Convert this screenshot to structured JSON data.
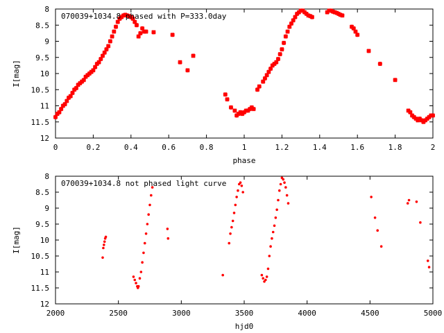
{
  "chart_data": [
    {
      "type": "scatter",
      "title": "070039+1034.8 phased with P=333.0day",
      "xlabel": "phase",
      "ylabel": "I[mag]",
      "xlim": [
        0,
        2
      ],
      "ylim": [
        12,
        8
      ],
      "y_inverted": true,
      "x_ticks": [
        "0",
        "0.2",
        "0.4",
        "0.6",
        "0.8",
        "1",
        "1.2",
        "1.4",
        "1.6",
        "1.8",
        "2"
      ],
      "y_ticks": [
        "8",
        "8.5",
        "9",
        "9.5",
        "10",
        "10.5",
        "11",
        "11.5",
        "12"
      ],
      "grid": false,
      "color": "#ff0000",
      "marker": "cross",
      "series": [
        {
          "x": [
            0.0,
            0.01,
            0.02,
            0.03,
            0.04,
            0.05,
            0.06,
            0.07,
            0.08,
            0.09,
            0.1,
            0.11,
            0.12,
            0.13,
            0.14,
            0.15,
            0.16,
            0.17,
            0.18,
            0.19,
            0.2,
            0.21,
            0.22,
            0.23,
            0.24,
            0.25,
            0.26,
            0.27,
            0.28,
            0.29,
            0.3,
            0.31,
            0.32,
            0.33,
            0.34,
            0.35,
            0.36,
            0.37,
            0.38,
            0.39,
            0.4,
            0.41,
            0.42,
            0.43,
            0.44,
            0.45,
            0.46,
            0.47,
            0.48,
            0.52,
            0.62,
            0.66,
            0.7,
            0.73,
            0.9,
            0.91,
            0.93,
            0.95,
            0.96,
            0.97,
            0.98,
            0.99,
            1.0,
            1.01,
            1.02,
            1.03,
            1.04,
            1.05,
            1.07,
            1.08,
            1.1,
            1.11,
            1.12,
            1.13,
            1.14,
            1.15,
            1.16,
            1.17,
            1.18,
            1.19,
            1.2,
            1.21,
            1.22,
            1.23,
            1.24,
            1.25,
            1.26,
            1.27,
            1.28,
            1.29,
            1.3,
            1.31,
            1.32,
            1.33,
            1.34,
            1.35,
            1.36,
            1.44,
            1.45,
            1.46,
            1.47,
            1.48,
            1.49,
            1.5,
            1.51,
            1.52,
            1.57,
            1.58,
            1.59,
            1.6,
            1.66,
            1.72,
            1.8,
            1.87,
            1.88,
            1.89,
            1.9,
            1.91,
            1.92,
            1.93,
            1.94,
            1.95,
            1.96,
            1.97,
            1.98,
            1.99,
            2.0
          ],
          "y": [
            11.35,
            11.25,
            11.2,
            11.1,
            11.0,
            10.95,
            10.85,
            10.75,
            10.7,
            10.6,
            10.5,
            10.45,
            10.35,
            10.3,
            10.25,
            10.2,
            10.1,
            10.05,
            10.0,
            9.95,
            9.9,
            9.8,
            9.7,
            9.65,
            9.55,
            9.45,
            9.35,
            9.25,
            9.15,
            9.0,
            8.85,
            8.7,
            8.55,
            8.4,
            8.3,
            8.25,
            8.2,
            8.18,
            8.2,
            8.22,
            8.25,
            8.3,
            8.4,
            8.5,
            8.85,
            8.75,
            8.6,
            8.7,
            8.7,
            8.72,
            8.8,
            9.65,
            9.9,
            9.45,
            10.65,
            10.8,
            11.05,
            11.15,
            11.3,
            11.25,
            11.2,
            11.25,
            11.2,
            11.15,
            11.15,
            11.1,
            11.05,
            11.1,
            10.5,
            10.4,
            10.25,
            10.15,
            10.05,
            9.95,
            9.85,
            9.75,
            9.7,
            9.65,
            9.55,
            9.4,
            9.25,
            9.05,
            8.85,
            8.7,
            8.55,
            8.45,
            8.35,
            8.25,
            8.15,
            8.1,
            8.05,
            8.05,
            8.1,
            8.15,
            8.2,
            8.22,
            8.25,
            8.1,
            8.05,
            8.05,
            8.08,
            8.1,
            8.12,
            8.15,
            8.18,
            8.2,
            8.55,
            8.6,
            8.7,
            8.8,
            9.3,
            9.7,
            10.2,
            11.15,
            11.2,
            11.3,
            11.35,
            11.4,
            11.45,
            11.4,
            11.45,
            11.5,
            11.45,
            11.4,
            11.35,
            11.3,
            11.3
          ]
        }
      ]
    },
    {
      "type": "scatter",
      "title": "070039+1034.8 not phased light curve",
      "xlabel": "hjd0",
      "ylabel": "I[mag]",
      "xlim": [
        2000,
        5000
      ],
      "ylim": [
        12,
        8
      ],
      "y_inverted": true,
      "x_ticks": [
        "2000",
        "2500",
        "3000",
        "3500",
        "4000",
        "4500",
        "5000"
      ],
      "y_ticks": [
        "8",
        "8.5",
        "9",
        "9.5",
        "10",
        "10.5",
        "11",
        "11.5",
        "12"
      ],
      "grid": false,
      "color": "#ff0000",
      "marker": "dot",
      "series": [
        {
          "x": [
            2375,
            2380,
            2385,
            2390,
            2395,
            2400,
            2620,
            2630,
            2640,
            2650,
            2655,
            2660,
            2670,
            2680,
            2690,
            2700,
            2710,
            2720,
            2730,
            2740,
            2750,
            2760,
            2770,
            2890,
            2895,
            3330,
            3380,
            3390,
            3400,
            3410,
            3420,
            3430,
            3440,
            3450,
            3460,
            3470,
            3480,
            3490,
            3640,
            3650,
            3660,
            3670,
            3680,
            3690,
            3700,
            3710,
            3720,
            3730,
            3740,
            3750,
            3760,
            3770,
            3780,
            3790,
            3800,
            3810,
            3820,
            3830,
            3840,
            3850,
            4510,
            4540,
            4560,
            4590,
            4800,
            4810,
            4870,
            4900,
            4960,
            4970
          ],
          "y": [
            10.55,
            10.25,
            10.15,
            10.05,
            9.95,
            9.9,
            11.15,
            11.25,
            11.35,
            11.45,
            11.5,
            11.45,
            11.2,
            11.0,
            10.7,
            10.4,
            10.1,
            9.8,
            9.5,
            9.2,
            8.9,
            8.6,
            8.35,
            9.65,
            9.95,
            11.1,
            10.1,
            9.8,
            9.6,
            9.4,
            9.15,
            8.9,
            8.65,
            8.45,
            8.25,
            8.2,
            8.3,
            8.5,
            11.1,
            11.2,
            11.3,
            11.25,
            11.15,
            10.9,
            10.5,
            10.2,
            9.95,
            9.75,
            9.55,
            9.3,
            9.05,
            8.75,
            8.45,
            8.25,
            8.05,
            8.1,
            8.2,
            8.35,
            8.6,
            8.85,
            8.65,
            9.3,
            9.7,
            10.2,
            8.85,
            8.75,
            8.8,
            9.45,
            10.65,
            10.85
          ]
        }
      ]
    }
  ]
}
